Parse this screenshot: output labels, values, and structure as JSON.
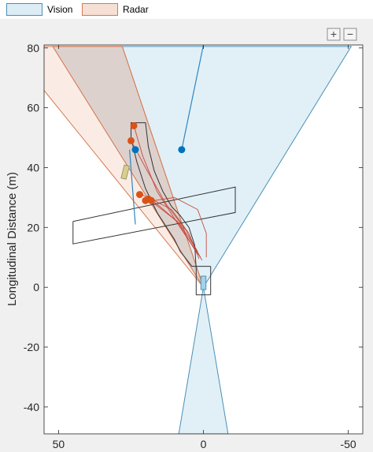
{
  "legend": {
    "items": [
      {
        "label": "Vision",
        "fill": "#dcedf6",
        "stroke": "#4a8fb5"
      },
      {
        "label": "Radar",
        "fill": "#f6dfd4",
        "stroke": "#d7794e"
      }
    ]
  },
  "toolbar": {
    "zoom_in_symbol": "+",
    "zoom_out_symbol": "−"
  },
  "icons": {
    "zoom_in": "zoom-in-icon",
    "zoom_out": "zoom-out-icon"
  },
  "colors": {
    "vision_point": "#0072bd",
    "radar_point": "#d95319",
    "road": "#333333",
    "ego": "#9fd3ee",
    "vehicle": "#d8cf8e"
  },
  "chart_data": {
    "type": "scatter",
    "title": "",
    "xlabel": "",
    "ylabel": "Longitudinal Distance (m)",
    "xlim": [
      55,
      -55
    ],
    "ylim": [
      -49,
      81
    ],
    "xticks": [
      50,
      0,
      -50
    ],
    "xtick_labels": [
      "50",
      "0",
      "-50"
    ],
    "yticks": [
      80,
      60,
      40,
      20,
      0,
      -20,
      -40
    ],
    "ytick_labels": [
      "80",
      "60",
      "40",
      "20",
      "0",
      "-20",
      "-40"
    ],
    "grid": false,
    "legend_position": "top",
    "coverage": [
      {
        "sensor": "Vision",
        "polygon": [
          [
            0,
            0
          ],
          [
            52,
            80.5
          ],
          [
            -51,
            80.5
          ]
        ],
        "fill": "#dcedf6",
        "stroke": "#4a8fb5"
      },
      {
        "sensor": "Vision",
        "polygon": [
          [
            0,
            0
          ],
          [
            8.5,
            -49
          ],
          [
            -8.5,
            -49
          ]
        ],
        "fill": "#dcedf6",
        "stroke": "#4a8fb5"
      },
      {
        "sensor": "Radar",
        "polygon": [
          [
            0,
            0
          ],
          [
            56,
            67
          ],
          [
            56,
            80.5
          ],
          [
            28,
            80.5
          ]
        ],
        "fill": "#f6dfd4",
        "stroke": "#d7794e",
        "opacity": 0.6
      },
      {
        "sensor": "Radar",
        "polygon": [
          [
            0,
            0
          ],
          [
            52,
            80.5
          ],
          [
            28,
            80.5
          ]
        ],
        "fill": "#c8b9b4",
        "stroke": "#d7794e",
        "opacity": 0.45
      }
    ],
    "road_outline": [
      [
        [
          -2.5,
          -2.5
        ],
        [
          2.5,
          -2.5
        ],
        [
          2.5,
          6
        ],
        [
          3,
          14
        ],
        [
          5,
          20
        ],
        [
          8,
          24
        ],
        [
          11,
          27
        ],
        [
          14,
          32
        ],
        [
          17,
          39
        ],
        [
          19,
          47
        ],
        [
          20,
          55
        ],
        [
          25,
          55
        ],
        [
          25,
          50
        ],
        [
          23,
          42
        ],
        [
          20,
          33
        ],
        [
          16,
          25
        ],
        [
          12,
          19
        ],
        [
          10,
          16
        ],
        [
          8,
          12
        ],
        [
          4,
          7
        ],
        [
          -2.5,
          7
        ]
      ],
      [
        [
          -2.5,
          -2.5
        ],
        [
          -2.5,
          7
        ]
      ],
      [
        [
          45,
          22
        ],
        [
          -11,
          33.5
        ],
        [
          -11,
          25
        ],
        [
          45,
          14.5
        ],
        [
          45,
          22
        ]
      ]
    ],
    "radar_tracks": [
      {
        "x": [
          1,
          8,
          16,
          21,
          24
        ],
        "y": [
          10,
          20,
          32,
          44,
          54
        ]
      },
      {
        "x": [
          0.5,
          6,
          13,
          20,
          25
        ],
        "y": [
          9,
          19,
          28,
          40,
          49
        ]
      },
      {
        "x": [
          2,
          9,
          17,
          21
        ],
        "y": [
          11,
          22,
          28,
          31
        ]
      },
      {
        "x": [
          2,
          8,
          15,
          19
        ],
        "y": [
          12,
          21,
          27,
          30
        ]
      },
      {
        "x": [
          1.5,
          5,
          11,
          17
        ],
        "y": [
          9.5,
          18,
          26,
          29
        ]
      },
      {
        "x": [
          -1,
          -1,
          2,
          10,
          17
        ],
        "y": [
          10,
          18,
          26,
          30,
          29
        ]
      }
    ],
    "vision_tracks": [
      {
        "x": [
          0,
          7.5
        ],
        "y": [
          81,
          46
        ]
      },
      {
        "x": [
          23.5,
          25.5
        ],
        "y": [
          21,
          46
        ]
      }
    ],
    "radar_points": [
      {
        "x": 24,
        "y": 54
      },
      {
        "x": 25,
        "y": 49
      },
      {
        "x": 22,
        "y": 31
      },
      {
        "x": 20,
        "y": 29
      },
      {
        "x": 19,
        "y": 29.5
      },
      {
        "x": 18,
        "y": 29
      }
    ],
    "vision_points": [
      {
        "x": 7.5,
        "y": 46
      },
      {
        "x": 23.5,
        "y": 46
      }
    ],
    "ego_vehicle": {
      "x": 0,
      "y": 1.5,
      "length": 4.5,
      "width": 1.8
    },
    "tracked_vehicle": {
      "x": 27,
      "y": 38.5,
      "length": 4.5,
      "width": 1.8,
      "angle": 14
    }
  }
}
